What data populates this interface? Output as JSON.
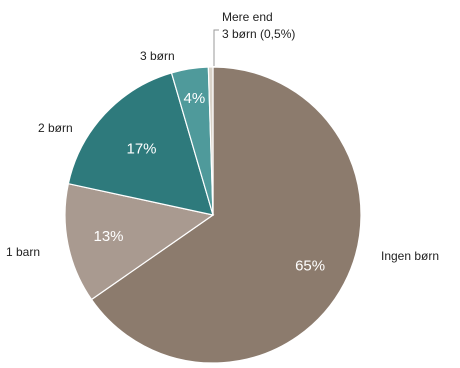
{
  "chart_data": {
    "type": "pie",
    "start_angle_deg": 0,
    "direction": "clockwise",
    "slices": [
      {
        "label": "Ingen børn",
        "value": 65,
        "value_label": "65%",
        "color": "#8c7b6d"
      },
      {
        "label": "1 barn",
        "value": 13,
        "value_label": "13%",
        "color": "#a99a90"
      },
      {
        "label": "2 børn",
        "value": 17,
        "value_label": "17%",
        "color": "#2e7a7c"
      },
      {
        "label": "3 børn",
        "value": 4,
        "value_label": "4%",
        "color": "#4f9a9b"
      },
      {
        "label_lines": [
          "Mere end",
          "3 børn (0,5%)"
        ],
        "value": 0.5,
        "value_label": "",
        "color": "#d9d2c8"
      }
    ]
  }
}
